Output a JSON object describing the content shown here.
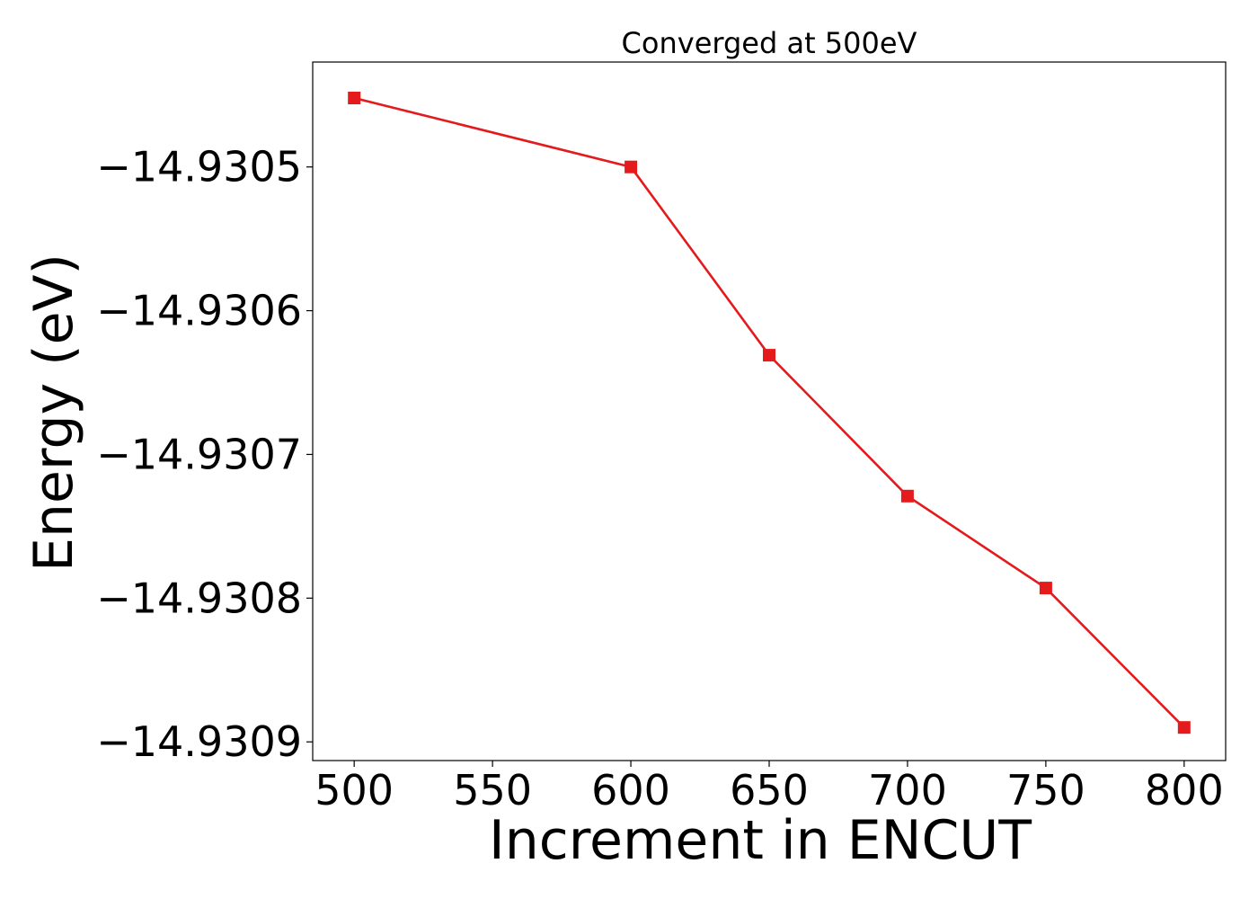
{
  "chart_data": {
    "type": "line",
    "title": "Converged at 500eV",
    "xlabel": "Increment in ENCUT",
    "ylabel": "Energy (eV)",
    "xlim": [
      485,
      815
    ],
    "ylim": [
      -14.930913,
      -14.930427
    ],
    "xticks": [
      500,
      550,
      600,
      650,
      700,
      750,
      800
    ],
    "xtick_labels": [
      "500",
      "550",
      "600",
      "650",
      "700",
      "750",
      "800"
    ],
    "yticks": [
      -14.9305,
      -14.9306,
      -14.9307,
      -14.9308,
      -14.9309
    ],
    "ytick_labels": [
      "−14.9305",
      "−14.9306",
      "−14.9307",
      "−14.9308",
      "−14.9309"
    ],
    "grid": false,
    "legend": "none",
    "color": "#e41a1c",
    "marker": "square",
    "series": [
      {
        "x": [
          500,
          600,
          650,
          700,
          750,
          800
        ],
        "y": [
          -14.930452,
          -14.9305,
          -14.930631,
          -14.930729,
          -14.930793,
          -14.93089
        ]
      }
    ]
  }
}
